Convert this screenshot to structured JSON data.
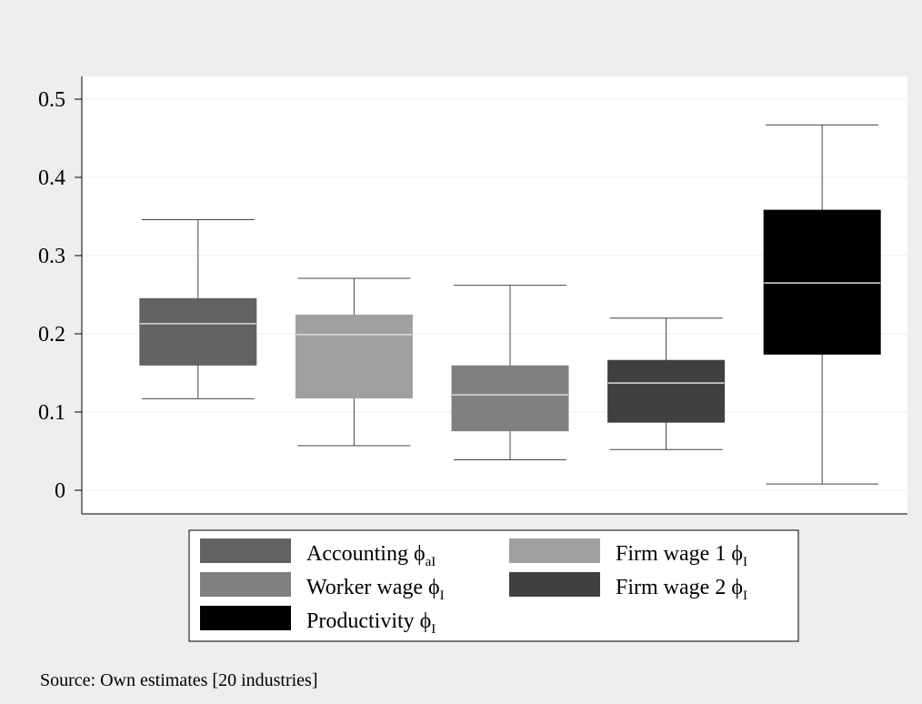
{
  "chart_data": {
    "type": "box",
    "y_ticks": [
      0,
      0.1,
      0.2,
      0.3,
      0.4,
      0.5
    ],
    "y_tick_labels": [
      "0",
      "0.1",
      "0.2",
      "0.3",
      "0.4",
      "0.5"
    ],
    "ylim": [
      -0.03,
      0.53
    ],
    "grid": true,
    "legend_placement": "bottom",
    "series": [
      {
        "name": "Accounting",
        "symbol": "ϕ",
        "subscript": "aI",
        "color": "#626262",
        "whisker_low": 0.117,
        "q1": 0.16,
        "median": 0.213,
        "q3": 0.245,
        "whisker_high": 0.346
      },
      {
        "name": "Firm wage 1",
        "symbol": "ϕ",
        "subscript": "I",
        "color": "#a0a0a0",
        "whisker_low": 0.057,
        "q1": 0.118,
        "median": 0.199,
        "q3": 0.224,
        "whisker_high": 0.271
      },
      {
        "name": "Worker wage",
        "symbol": "ϕ",
        "subscript": "I",
        "color": "#808080",
        "whisker_low": 0.039,
        "q1": 0.076,
        "median": 0.122,
        "q3": 0.159,
        "whisker_high": 0.262
      },
      {
        "name": "Firm wage 2",
        "symbol": "ϕ",
        "subscript": "I",
        "color": "#404040",
        "whisker_low": 0.052,
        "q1": 0.087,
        "median": 0.137,
        "q3": 0.166,
        "whisker_high": 0.22
      },
      {
        "name": "Productivity",
        "symbol": "ϕ",
        "subscript": "I",
        "color": "#000000",
        "whisker_low": 0.008,
        "q1": 0.174,
        "median": 0.265,
        "q3": 0.358,
        "whisker_high": 0.467
      }
    ],
    "legend_order": [
      0,
      1,
      2,
      3,
      4
    ],
    "note": "Source:  Own estimates [20 industries]"
  }
}
